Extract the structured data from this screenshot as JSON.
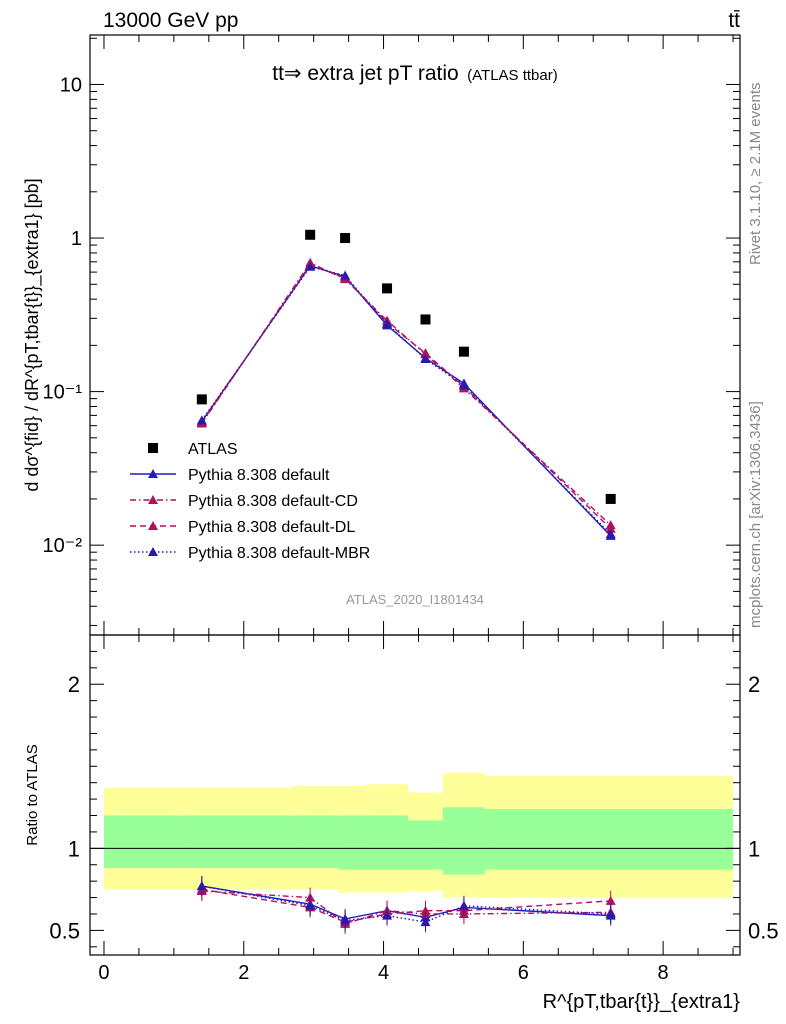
{
  "header": {
    "left_label": "13000 GeV pp",
    "right_label": "tt̄"
  },
  "side_labels": {
    "rivet": "Rivet 3.1.10, ≥ 2.1M events",
    "mcplots": "mcplots.cern.ch [arXiv:1306.3436]"
  },
  "colors": {
    "data": "#000000",
    "default": "#1f1fbf",
    "cd": "#b0105e",
    "dl": "#b0105e",
    "mbr": "#2a1aa8",
    "band_outer": "#ffff99",
    "band_inner": "#99ff99"
  },
  "chart_data": [
    {
      "type": "line",
      "title": "tt⇒ extra jet pT ratio",
      "title_suffix": "(ATLAS ttbar)",
      "watermark": "ATLAS_2020_I1801434",
      "ylabel": "d dσ^{fid} / dR^{pT,tbar{t}}_{extra1} [pb]",
      "ylog": true,
      "ylim": [
        0.0026,
        21
      ],
      "xlim": [
        -0.2,
        9.1
      ],
      "ytick_labels": [
        "10",
        "1",
        "10⁻¹",
        "10⁻²"
      ],
      "legend_position": "middle-left",
      "x": [
        1.4,
        2.95,
        3.45,
        4.05,
        4.6,
        5.15,
        7.25
      ],
      "data_series": {
        "name": "ATLAS",
        "values": [
          0.089,
          1.05,
          1.0,
          0.47,
          0.295,
          0.182,
          0.02
        ]
      },
      "series": [
        {
          "name": "Pythia 8.308 default",
          "style": "solid",
          "key": "default",
          "values": [
            0.064,
            0.66,
            0.56,
            0.27,
            0.165,
            0.113,
            0.0115
          ]
        },
        {
          "name": "Pythia 8.308 default-CD",
          "style": "dashdot",
          "key": "cd",
          "values": [
            0.062,
            0.69,
            0.54,
            0.29,
            0.175,
            0.105,
            0.0135
          ]
        },
        {
          "name": "Pythia 8.308 default-DL",
          "style": "dashed",
          "key": "dl",
          "values": [
            0.063,
            0.67,
            0.55,
            0.28,
            0.178,
            0.108,
            0.0128
          ]
        },
        {
          "name": "Pythia 8.308 default-MBR",
          "style": "dotted",
          "key": "mbr",
          "values": [
            0.065,
            0.65,
            0.57,
            0.275,
            0.163,
            0.11,
            0.0118
          ]
        }
      ]
    },
    {
      "type": "line",
      "ylabel": "Ratio to ATLAS",
      "xlabel": "R^{pT,tbar{t}}_{extra1}",
      "ylim": [
        0.35,
        2.3
      ],
      "xlim": [
        -0.2,
        9.1
      ],
      "yticks": [
        0.5,
        1,
        2
      ],
      "ytick_labels": [
        "0.5",
        "1",
        "2"
      ],
      "xticks": [
        0,
        2,
        4,
        6,
        8
      ],
      "xtick_labels": [
        "0",
        "2",
        "4",
        "6",
        "8"
      ],
      "bands": {
        "edges": [
          0,
          1.1,
          2.7,
          3.35,
          3.75,
          4.35,
          4.85,
          5.45,
          9.0
        ],
        "outer_hi": [
          1.37,
          1.37,
          1.38,
          1.38,
          1.39,
          1.34,
          1.46,
          1.44
        ],
        "outer_lo": [
          0.75,
          0.75,
          0.75,
          0.73,
          0.73,
          0.74,
          0.7,
          0.7
        ],
        "inner_hi": [
          1.2,
          1.2,
          1.2,
          1.2,
          1.2,
          1.17,
          1.25,
          1.24
        ],
        "inner_lo": [
          0.88,
          0.88,
          0.88,
          0.87,
          0.87,
          0.87,
          0.84,
          0.87
        ]
      },
      "x": [
        1.4,
        2.95,
        3.45,
        4.05,
        4.6,
        5.15,
        7.25
      ],
      "series": [
        {
          "name": "Pythia 8.308 default",
          "key": "default",
          "style": "solid",
          "values": [
            0.77,
            0.66,
            0.57,
            0.62,
            0.58,
            0.64,
            0.59
          ]
        },
        {
          "name": "Pythia 8.308 default-CD",
          "key": "cd",
          "style": "dashdot",
          "values": [
            0.74,
            0.7,
            0.54,
            0.62,
            0.6,
            0.6,
            0.61
          ]
        },
        {
          "name": "Pythia 8.308 default-DL",
          "key": "dl",
          "style": "dashed",
          "values": [
            0.75,
            0.64,
            0.55,
            0.6,
            0.62,
            0.62,
            0.68
          ]
        },
        {
          "name": "Pythia 8.308 default-MBR",
          "key": "mbr",
          "style": "dotted",
          "values": [
            0.77,
            0.65,
            0.56,
            0.59,
            0.55,
            0.65,
            0.6
          ]
        }
      ]
    }
  ]
}
